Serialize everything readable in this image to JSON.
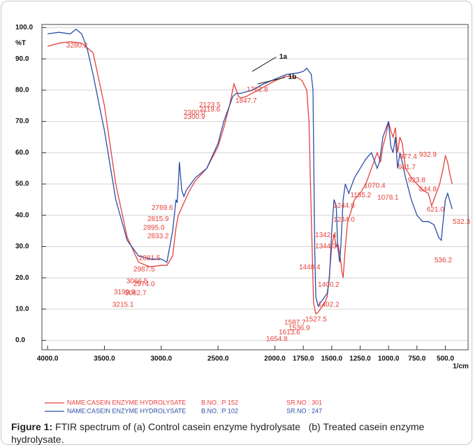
{
  "chart_data": {
    "type": "line",
    "y_axis_label": "%T",
    "x_axis_label": "1/cm",
    "xlim": [
      4050,
      300
    ],
    "ylim": [
      -3,
      101
    ],
    "grid": true,
    "xticks": [
      {
        "value": 4000,
        "label": "4000.0"
      },
      {
        "value": 3500,
        "label": "3500.0"
      },
      {
        "value": 3000,
        "label": "3000.0"
      },
      {
        "value": 2500,
        "label": "2500.0"
      },
      {
        "value": 2000,
        "label": "2000.0"
      },
      {
        "value": 1750,
        "label": "1750.0"
      },
      {
        "value": 1500,
        "label": "1500.0"
      },
      {
        "value": 1250,
        "label": "1250.0"
      },
      {
        "value": 1000,
        "label": "1000.0"
      },
      {
        "value": 750,
        "label": "750.0"
      },
      {
        "value": 500,
        "label": "500.0"
      }
    ],
    "yticks": [
      {
        "value": 0,
        "label": "0.0"
      },
      {
        "value": 10,
        "label": "10.0"
      },
      {
        "value": 20,
        "label": "20.0"
      },
      {
        "value": 30,
        "label": "30.0"
      },
      {
        "value": 40,
        "label": "40.0"
      },
      {
        "value": 50,
        "label": "50.0"
      },
      {
        "value": 60,
        "label": "60.0"
      },
      {
        "value": 70,
        "label": "70.0"
      },
      {
        "value": 80,
        "label": "80.0"
      },
      {
        "value": 90,
        "label": "90.0"
      },
      {
        "value": 100,
        "label": "100.0"
      }
    ],
    "series": [
      {
        "name": "NAME:CASEIN ENZYME HYDROLYSATE",
        "batch": "B.NO. :P 152",
        "serial": "SR.NO : 301",
        "color": "#e5403a",
        "x": [
          4000,
          3900,
          3800,
          3700,
          3600,
          3500,
          3400,
          3300,
          3200,
          3100,
          3000,
          2950,
          2900,
          2870,
          2850,
          2800,
          2750,
          2700,
          2600,
          2500,
          2450,
          2400,
          2360,
          2340,
          2320,
          2300,
          2250,
          2200,
          2100,
          2000,
          1900,
          1800,
          1760,
          1720,
          1700,
          1680,
          1660,
          1640,
          1620,
          1600,
          1580,
          1560,
          1540,
          1527,
          1500,
          1480,
          1460,
          1448,
          1430,
          1410,
          1400,
          1380,
          1360,
          1340,
          1300,
          1250,
          1200,
          1150,
          1100,
          1070,
          1050,
          1020,
          1000,
          980,
          960,
          940,
          920,
          900,
          880,
          850,
          800,
          750,
          700,
          650,
          621,
          600,
          550,
          520,
          500,
          480,
          460,
          440
        ],
        "values": [
          94,
          95,
          95.5,
          95,
          92,
          75,
          50,
          33,
          25,
          23.5,
          24,
          24,
          27,
          36,
          40,
          44,
          48,
          51,
          55,
          62,
          68,
          75,
          82,
          80,
          78,
          77.5,
          78,
          79,
          81,
          83,
          84.5,
          84,
          83,
          80,
          70,
          40,
          12,
          8.5,
          9,
          10,
          11,
          12,
          14,
          18,
          30,
          34,
          30,
          31,
          28,
          22,
          20,
          30,
          38,
          40,
          45,
          47,
          50,
          55,
          60,
          57,
          62,
          66,
          70,
          67,
          65,
          68,
          60,
          65,
          63,
          55,
          52,
          50,
          48,
          47,
          43,
          45,
          50,
          55,
          59,
          57,
          53,
          50
        ]
      },
      {
        "name": "NAME:CASEIN ENZYME HYDROLYSATE",
        "batch": "B.NO. :P 102",
        "serial": "SR.NO : 247",
        "color": "#2c4ea6",
        "x": [
          4000,
          3900,
          3800,
          3750,
          3700,
          3650,
          3600,
          3500,
          3400,
          3300,
          3200,
          3100,
          3000,
          2950,
          2900,
          2870,
          2860,
          2850,
          2840,
          2820,
          2800,
          2780,
          2700,
          2600,
          2500,
          2450,
          2400,
          2370,
          2340,
          2300,
          2200,
          2100,
          2000,
          1900,
          1800,
          1750,
          1720,
          1700,
          1680,
          1665,
          1650,
          1640,
          1620,
          1600,
          1580,
          1560,
          1540,
          1520,
          1500,
          1480,
          1460,
          1448,
          1430,
          1420,
          1400,
          1380,
          1350,
          1300,
          1250,
          1200,
          1150,
          1120,
          1100,
          1080,
          1050,
          1020,
          1000,
          980,
          960,
          940,
          920,
          900,
          880,
          850,
          800,
          750,
          700,
          650,
          600,
          560,
          536,
          520,
          500,
          480,
          440
        ],
        "values": [
          98,
          98.5,
          98,
          99.5,
          98,
          93,
          85,
          67,
          45,
          32,
          27,
          26,
          26,
          25,
          35,
          45,
          44,
          50,
          57,
          48,
          46,
          48,
          52,
          55,
          63,
          70,
          75,
          78,
          79,
          79,
          80,
          82,
          83.5,
          85,
          85.5,
          86,
          87,
          86,
          85,
          80,
          30,
          14,
          11,
          12,
          13,
          14,
          15,
          20,
          35,
          45,
          43,
          30,
          25,
          30,
          45,
          50,
          47,
          52,
          55,
          58,
          60,
          57,
          55,
          57,
          65,
          68,
          70,
          62,
          60,
          65,
          55,
          60,
          57,
          52,
          45,
          40,
          38,
          38,
          37,
          33,
          32,
          38,
          45,
          47,
          42
        ]
      }
    ],
    "annotations": [
      {
        "text": "3280.2",
        "x": 3742,
        "y": 94.2,
        "series": 0
      },
      {
        "text": "2769.6",
        "x": 2991,
        "y": 42.3,
        "series": 0
      },
      {
        "text": "2815.9",
        "x": 3028,
        "y": 38.7,
        "series": 0
      },
      {
        "text": "2895.0",
        "x": 3065,
        "y": 36.0,
        "series": 0
      },
      {
        "text": "2833.2",
        "x": 3028,
        "y": 33.3,
        "series": 0
      },
      {
        "text": "2881.5",
        "x": 3102,
        "y": 26.2,
        "series": 0
      },
      {
        "text": "2987.5",
        "x": 3151,
        "y": 22.6,
        "series": 0
      },
      {
        "text": "3066.5",
        "x": 3213,
        "y": 18.8,
        "series": 0
      },
      {
        "text": "2974.0",
        "x": 3151,
        "y": 17.9,
        "series": 0
      },
      {
        "text": "3190.9",
        "x": 3323,
        "y": 15.4,
        "series": 0
      },
      {
        "text": "3062.7",
        "x": 3225,
        "y": 15.0,
        "series": 0
      },
      {
        "text": "3215.1",
        "x": 3336,
        "y": 11.4,
        "series": 0
      },
      {
        "text": "2300.0",
        "x": 2708,
        "y": 72.7,
        "series": 0
      },
      {
        "text": "2300.9",
        "x": 2708,
        "y": 71.4,
        "series": 0
      },
      {
        "text": "2123.5",
        "x": 2573,
        "y": 75.2,
        "series": 0
      },
      {
        "text": "2119.6",
        "x": 2573,
        "y": 73.8,
        "series": 0
      },
      {
        "text": "1762.8",
        "x": 2155,
        "y": 80.1,
        "series": 0
      },
      {
        "text": "1847.7",
        "x": 2253,
        "y": 76.5,
        "series": 0
      },
      {
        "text": "1244.0",
        "x": 1392,
        "y": 43.0,
        "series": 0
      },
      {
        "text": "1244.0",
        "x": 1392,
        "y": 38.5,
        "series": 0
      },
      {
        "text": "1342.4",
        "x": 1552,
        "y": 33.6,
        "series": 0
      },
      {
        "text": "1344.3",
        "x": 1552,
        "y": 30.0,
        "series": 0
      },
      {
        "text": "1448.4",
        "x": 1694,
        "y": 23.3,
        "series": 0
      },
      {
        "text": "1400.2",
        "x": 1528,
        "y": 17.7,
        "series": 0
      },
      {
        "text": "1402.2",
        "x": 1528,
        "y": 11.4,
        "series": 0
      },
      {
        "text": "1527.5",
        "x": 1638,
        "y": 6.7,
        "series": 0
      },
      {
        "text": "1587.7",
        "x": 1823,
        "y": 5.6,
        "series": 0
      },
      {
        "text": "1536.9",
        "x": 1786,
        "y": 3.8,
        "series": 0
      },
      {
        "text": "1613.6",
        "x": 1872,
        "y": 2.5,
        "series": 0
      },
      {
        "text": "1654.8",
        "x": 1983,
        "y": 0.4,
        "series": 0
      },
      {
        "text": "1155.2",
        "x": 1245,
        "y": 46.3,
        "series": 0
      },
      {
        "text": "1070.4",
        "x": 1122,
        "y": 49.4,
        "series": 0
      },
      {
        "text": "1078.1",
        "x": 1005,
        "y": 45.6,
        "series": 0
      },
      {
        "text": "977.4",
        "x": 827,
        "y": 58.6,
        "series": 0
      },
      {
        "text": "932.9",
        "x": 654,
        "y": 59.3,
        "series": 0
      },
      {
        "text": "981.7",
        "x": 839,
        "y": 55.3,
        "series": 0
      },
      {
        "text": "844.8",
        "x": 654,
        "y": 48.3,
        "series": 0
      },
      {
        "text": "923.8",
        "x": 753,
        "y": 51.2,
        "series": 0
      },
      {
        "text": "621.0",
        "x": 587,
        "y": 41.8,
        "series": 0
      },
      {
        "text": "532.3",
        "x": 359,
        "y": 37.8,
        "series": 0
      },
      {
        "text": "536.2",
        "x": 519,
        "y": 25.5,
        "series": 0
      }
    ],
    "callouts": [
      {
        "text": "1a",
        "x": 1927,
        "y": 90.6,
        "from_x": 2200,
        "from_y": 86
      },
      {
        "text": "1b",
        "x": 1847,
        "y": 84.1,
        "from_x": 2150,
        "from_y": 82
      }
    ],
    "caption_label": "Figure 1:",
    "caption": "FTIR spectrum of (a) Control casein enzyme hydrolysate   (b) Treated casein enzyme hydrolysate."
  }
}
